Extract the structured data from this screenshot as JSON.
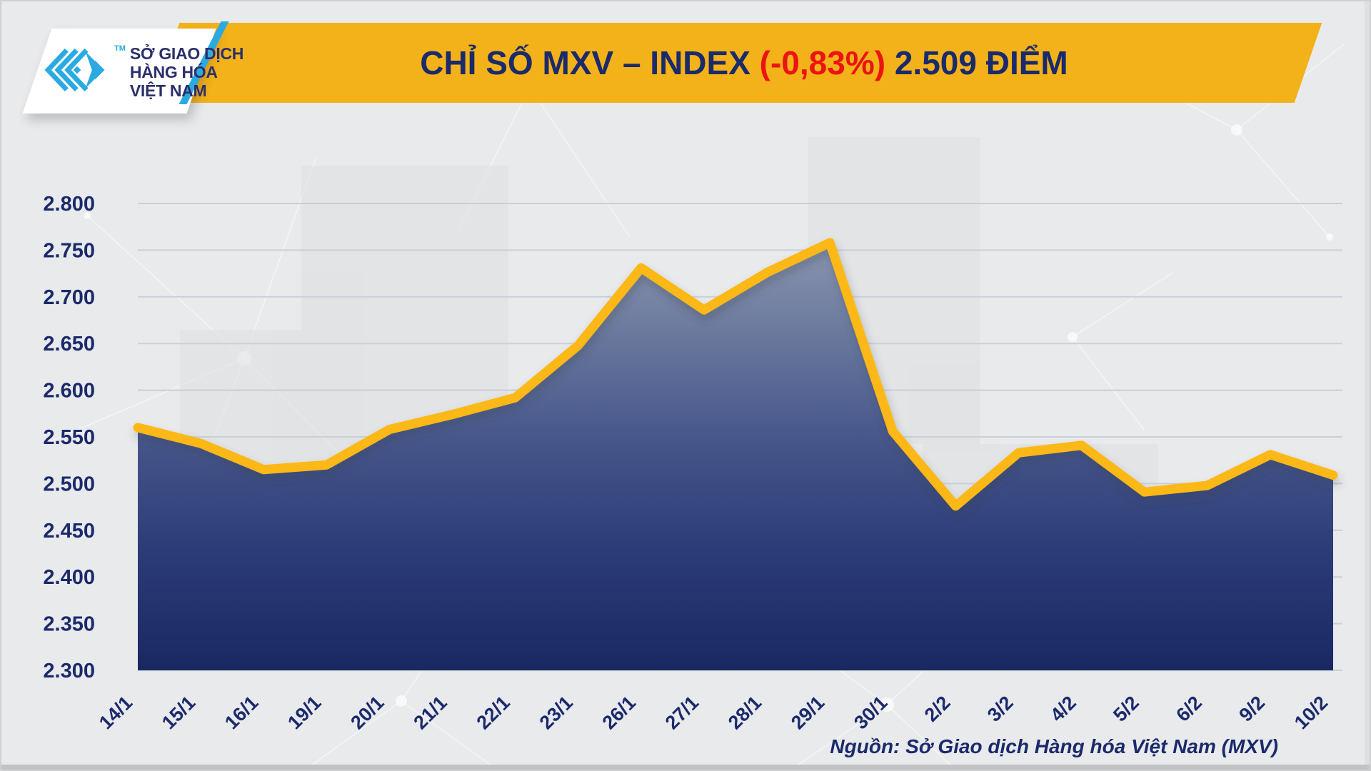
{
  "header": {
    "logo": {
      "line1": "SỞ GIAO DỊCH",
      "line2": "HÀNG HÓA",
      "line3": "VIỆT NAM",
      "tm": "TM"
    },
    "title": {
      "prefix": "CHỈ SỐ MXV – INDEX ",
      "change": "(-0,83%)",
      "suffix": " 2.509 ĐIỂM"
    }
  },
  "footer": {
    "source": "Nguồn: Sở Giao dịch Hàng hóa Việt Nam (MXV)"
  },
  "colors": {
    "banner_yellow": "#f3b219",
    "line_yellow": "#fcb813",
    "navy_text": "#1b2a6b",
    "red_change": "#ec1313",
    "cyan_accent": "#2baae2",
    "gridline": "#c9cfdb",
    "area_gradient_top": "#98a1b8",
    "area_gradient_bottom": "#1a2862",
    "background": "#e9eaec"
  },
  "chart_data": {
    "type": "area",
    "title": "CHỈ SỐ MXV – INDEX (-0,83%) 2.509 ĐIỂM",
    "categories": [
      "14/1",
      "15/1",
      "16/1",
      "19/1",
      "20/1",
      "21/1",
      "22/1",
      "23/1",
      "26/1",
      "27/1",
      "28/1",
      "29/1",
      "30/1",
      "2/2",
      "3/2",
      "4/2",
      "5/2",
      "6/2",
      "9/2",
      "10/2"
    ],
    "values": [
      2560,
      2543,
      2515,
      2520,
      2558,
      2574,
      2592,
      2648,
      2731,
      2686,
      2726,
      2758,
      2556,
      2476,
      2533,
      2541,
      2491,
      2498,
      2531,
      2509
    ],
    "ylim": [
      2300,
      2800
    ],
    "yticks": [
      {
        "value": 2300,
        "label": "2.300"
      },
      {
        "value": 2350,
        "label": "2.350"
      },
      {
        "value": 2400,
        "label": "2.400"
      },
      {
        "value": 2450,
        "label": "2.450"
      },
      {
        "value": 2500,
        "label": "2.500"
      },
      {
        "value": 2550,
        "label": "2.550"
      },
      {
        "value": 2600,
        "label": "2.600"
      },
      {
        "value": 2650,
        "label": "2.650"
      },
      {
        "value": 2700,
        "label": "2.700"
      },
      {
        "value": 2750,
        "label": "2.750"
      },
      {
        "value": 2800,
        "label": "2.800"
      }
    ],
    "grid": true,
    "legend": "none",
    "xlabel": "",
    "ylabel": ""
  }
}
